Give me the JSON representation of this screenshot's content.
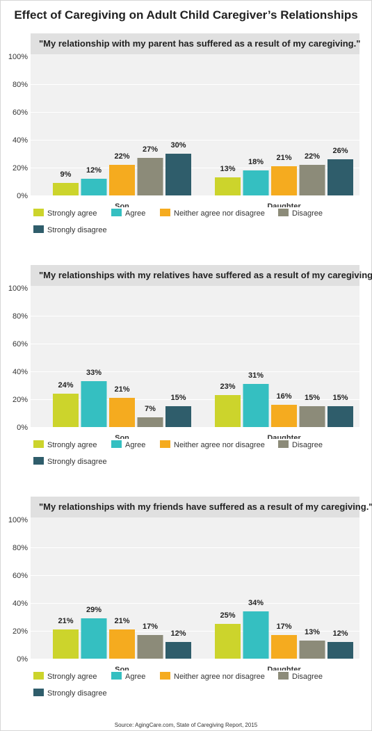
{
  "title": "Effect of Caregiving on Adult Child Caregiver’s Relationships",
  "source": "Source: AgingCare.com, State of Caregiving Report, 2015",
  "colors": {
    "Strongly agree": "#ccd42c",
    "Agree": "#35bfc1",
    "Neither agree nor disagree": "#f5ab1f",
    "Disagree": "#8c8b79",
    "Strongly disagree": "#2f5d6b"
  },
  "chart_data": [
    {
      "type": "bar",
      "title": "\"My relationship with my parent has suffered as a result of my caregiving.\"",
      "categories": [
        "Son",
        "Daughter"
      ],
      "yticks": [
        "0%",
        "20%",
        "40%",
        "60%",
        "80%",
        "100%"
      ],
      "ylim": [
        0,
        100
      ],
      "grid": true,
      "legend_position": "bottom",
      "series": [
        {
          "name": "Strongly agree",
          "values": [
            9,
            13
          ],
          "labels": [
            "9%",
            "13%"
          ]
        },
        {
          "name": "Agree",
          "values": [
            12,
            18
          ],
          "labels": [
            "12%",
            "18%"
          ]
        },
        {
          "name": "Neither agree nor disagree",
          "values": [
            22,
            21
          ],
          "labels": [
            "22%",
            "21%"
          ]
        },
        {
          "name": "Disagree",
          "values": [
            27,
            22
          ],
          "labels": [
            "27%",
            "22%"
          ]
        },
        {
          "name": "Strongly disagree",
          "values": [
            30,
            26
          ],
          "labels": [
            "30%",
            "26%"
          ]
        }
      ]
    },
    {
      "type": "bar",
      "title": "\"My relationships with my relatives have suffered as a result of my caregiving.\"",
      "categories": [
        "Son",
        "Daughter"
      ],
      "yticks": [
        "0%",
        "20%",
        "40%",
        "60%",
        "80%",
        "100%"
      ],
      "ylim": [
        0,
        100
      ],
      "grid": true,
      "legend_position": "bottom",
      "series": [
        {
          "name": "Strongly agree",
          "values": [
            24,
            23
          ],
          "labels": [
            "24%",
            "23%"
          ]
        },
        {
          "name": "Agree",
          "values": [
            33,
            31
          ],
          "labels": [
            "33%",
            "31%"
          ]
        },
        {
          "name": "Neither agree nor disagree",
          "values": [
            21,
            16
          ],
          "labels": [
            "21%",
            "16%"
          ]
        },
        {
          "name": "Disagree",
          "values": [
            7,
            15
          ],
          "labels": [
            "7%",
            "15%"
          ]
        },
        {
          "name": "Strongly disagree",
          "values": [
            15,
            15
          ],
          "labels": [
            "15%",
            "15%"
          ]
        }
      ]
    },
    {
      "type": "bar",
      "title": "\"My relationships with my friends have suffered as a result of my caregiving.\"",
      "categories": [
        "Son",
        "Daughter"
      ],
      "yticks": [
        "0%",
        "20%",
        "40%",
        "60%",
        "80%",
        "100%"
      ],
      "ylim": [
        0,
        100
      ],
      "grid": true,
      "legend_position": "bottom",
      "series": [
        {
          "name": "Strongly agree",
          "values": [
            21,
            25
          ],
          "labels": [
            "21%",
            "25%"
          ]
        },
        {
          "name": "Agree",
          "values": [
            29,
            34
          ],
          "labels": [
            "29%",
            "34%"
          ]
        },
        {
          "name": "Neither agree nor disagree",
          "values": [
            21,
            17
          ],
          "labels": [
            "21%",
            "17%"
          ]
        },
        {
          "name": "Disagree",
          "values": [
            17,
            13
          ],
          "labels": [
            "17%",
            "13%"
          ]
        },
        {
          "name": "Strongly disagree",
          "values": [
            12,
            12
          ],
          "labels": [
            "12%",
            "12%"
          ]
        }
      ]
    }
  ]
}
